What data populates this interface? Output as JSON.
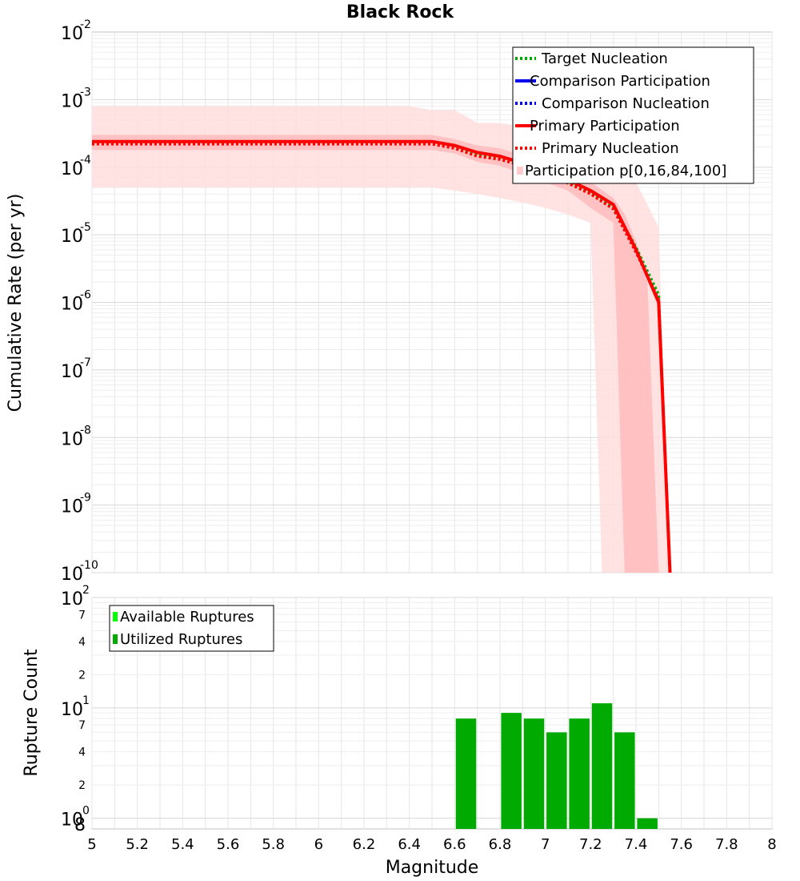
{
  "chart_data": [
    {
      "type": "line",
      "title": "Black Rock",
      "ylabel": "Cumulative Rate (per yr)",
      "xlabel": "",
      "yscale": "log",
      "xlim": [
        5,
        8
      ],
      "ylim": [
        1e-10,
        0.01
      ],
      "grid": true,
      "legend_position": "top-right",
      "y_ticks": [
        {
          "base": "10",
          "exp": "-2"
        },
        {
          "base": "10",
          "exp": "-3"
        },
        {
          "base": "10",
          "exp": "-4"
        },
        {
          "base": "10",
          "exp": "-5"
        },
        {
          "base": "10",
          "exp": "-6"
        },
        {
          "base": "10",
          "exp": "-7"
        },
        {
          "base": "10",
          "exp": "-8"
        },
        {
          "base": "10",
          "exp": "-9"
        },
        {
          "base": "10",
          "exp": "-10"
        }
      ],
      "legend": [
        {
          "label": "Target Nucleation",
          "color": "#00aa00",
          "style": "dotted"
        },
        {
          "label": "Comparison Participation",
          "color": "#0000ee",
          "style": "solid"
        },
        {
          "label": "Comparison Nucleation",
          "color": "#0000ee",
          "style": "dotted"
        },
        {
          "label": "Primary Participation",
          "color": "#ff0000",
          "style": "solid"
        },
        {
          "label": "Primary Nucleation",
          "color": "#ff0000",
          "style": "dotted"
        },
        {
          "label": "Participation p[0,16,84,100]",
          "color": "#ffcccc",
          "style": "band"
        }
      ],
      "series": [
        {
          "name": "Primary Participation",
          "color": "#ff0000",
          "style": "solid",
          "x": [
            5.0,
            5.1,
            5.2,
            5.3,
            5.4,
            5.5,
            5.6,
            5.7,
            5.8,
            5.9,
            6.0,
            6.1,
            6.2,
            6.3,
            6.4,
            6.5,
            6.6,
            6.7,
            6.8,
            6.9,
            7.0,
            7.1,
            7.2,
            7.3,
            7.4,
            7.5,
            7.55
          ],
          "y": [
            0.00024,
            0.00024,
            0.00024,
            0.00024,
            0.00024,
            0.00024,
            0.00024,
            0.00024,
            0.00024,
            0.00024,
            0.00024,
            0.00024,
            0.00024,
            0.00024,
            0.00024,
            0.00024,
            0.00021,
            0.000165,
            0.000145,
            0.000115,
            8.5e-05,
            6.5e-05,
            4.5e-05,
            2.8e-05,
            6e-06,
            1e-06,
            1e-10
          ]
        },
        {
          "name": "Primary Nucleation",
          "color": "#ff0000",
          "style": "dotted",
          "x": [
            5.0,
            5.1,
            5.2,
            5.3,
            5.4,
            5.5,
            5.6,
            5.7,
            5.8,
            5.9,
            6.0,
            6.1,
            6.2,
            6.3,
            6.4,
            6.5,
            6.6,
            6.7,
            6.8,
            6.9,
            7.0,
            7.1,
            7.2,
            7.3,
            7.4,
            7.5,
            7.55
          ],
          "y": [
            0.00022,
            0.00022,
            0.00022,
            0.00022,
            0.00022,
            0.00022,
            0.00022,
            0.00022,
            0.00022,
            0.00022,
            0.00022,
            0.00022,
            0.00022,
            0.00022,
            0.00022,
            0.00022,
            0.00019,
            0.000145,
            0.00013,
            0.000105,
            7.8e-05,
            5.8e-05,
            4e-05,
            2.4e-05,
            5.5e-06,
            1.1e-06,
            1e-10
          ]
        },
        {
          "name": "Target Nucleation",
          "color": "#00aa00",
          "style": "dotted",
          "x": [
            5.0,
            5.1,
            5.2,
            5.3,
            5.4,
            5.5,
            5.6,
            5.7,
            5.8,
            5.9,
            6.0,
            6.1,
            6.2,
            6.3,
            6.4,
            6.5,
            6.6,
            6.7,
            6.8,
            6.9,
            7.0,
            7.1,
            7.2,
            7.3,
            7.4,
            7.5,
            7.55
          ],
          "y": [
            0.000225,
            0.000225,
            0.000225,
            0.000225,
            0.000225,
            0.000225,
            0.000225,
            0.000225,
            0.000225,
            0.000225,
            0.000225,
            0.000225,
            0.000225,
            0.000225,
            0.000225,
            0.000225,
            0.000195,
            0.00015,
            0.000135,
            0.00011,
            8e-05,
            6e-05,
            4.2e-05,
            2.6e-05,
            6.5e-06,
            1.3e-06,
            1e-10
          ]
        }
      ],
      "bands": [
        {
          "name": "p[0,100]",
          "color": "#ffdddd",
          "x": [
            5.0,
            6.4,
            6.5,
            6.6,
            6.7,
            6.8,
            6.9,
            7.0,
            7.1,
            7.2,
            7.25,
            7.3,
            7.4,
            7.5,
            7.55
          ],
          "upper": [
            0.0008,
            0.0008,
            0.0007,
            0.0007,
            0.00045,
            0.00045,
            0.0004,
            0.00035,
            0.0003,
            0.00025,
            0.00022,
            0.00015,
            6e-05,
            1.3e-05,
            1e-10
          ],
          "lower": [
            5e-05,
            5e-05,
            5e-05,
            4.5e-05,
            4e-05,
            3.5e-05,
            3e-05,
            2.5e-05,
            2e-05,
            1.5e-05,
            1e-10,
            1e-10,
            1e-10,
            1e-10,
            1e-10
          ]
        },
        {
          "name": "p[16,84]",
          "color": "#ffbbbb",
          "x": [
            5.0,
            6.4,
            6.5,
            6.6,
            6.7,
            6.8,
            6.9,
            7.0,
            7.1,
            7.2,
            7.3,
            7.35,
            7.4,
            7.45,
            7.5
          ],
          "upper": [
            0.0003,
            0.0003,
            0.0003,
            0.00026,
            0.00021,
            0.00019,
            0.00015,
            0.00012,
            9e-05,
            6e-05,
            3.5e-05,
            2e-05,
            8e-06,
            2e-06,
            1e-10
          ],
          "lower": [
            0.00018,
            0.00018,
            0.00018,
            0.00016,
            0.00012,
            0.000105,
            8e-05,
            6e-05,
            4.5e-05,
            2.5e-05,
            1.5e-05,
            1e-10,
            1e-10,
            1e-10,
            1e-10
          ]
        }
      ]
    },
    {
      "type": "bar",
      "ylabel": "Rupture Count",
      "xlabel": "Magnitude",
      "yscale": "log",
      "xlim": [
        5,
        8
      ],
      "ylim": [
        0.8,
        100
      ],
      "grid": true,
      "legend_position": "top-left",
      "x_ticks": [
        "5",
        "5.2",
        "5.4",
        "5.6",
        "5.8",
        "6",
        "6.2",
        "6.4",
        "6.6",
        "6.8",
        "7",
        "7.2",
        "7.4",
        "7.6",
        "7.8",
        "8"
      ],
      "y_major_ticks": [
        {
          "base": "10",
          "exp": "2"
        },
        {
          "base": "10",
          "exp": "1"
        },
        {
          "base": "10",
          "exp": "0"
        }
      ],
      "y_minor_ticks": [
        "7",
        "4",
        "2",
        "7",
        "4",
        "2",
        "8"
      ],
      "legend": [
        {
          "label": "Available Ruptures",
          "color": "#00ff00"
        },
        {
          "label": "Utilized Ruptures",
          "color": "#00aa00"
        }
      ],
      "series": [
        {
          "name": "Utilized Ruptures",
          "color": "#00aa00",
          "x": [
            6.65,
            6.85,
            6.95,
            7.05,
            7.15,
            7.25,
            7.35,
            7.45
          ],
          "values": [
            8,
            9,
            8,
            6,
            8,
            11,
            6,
            1
          ]
        }
      ]
    }
  ]
}
